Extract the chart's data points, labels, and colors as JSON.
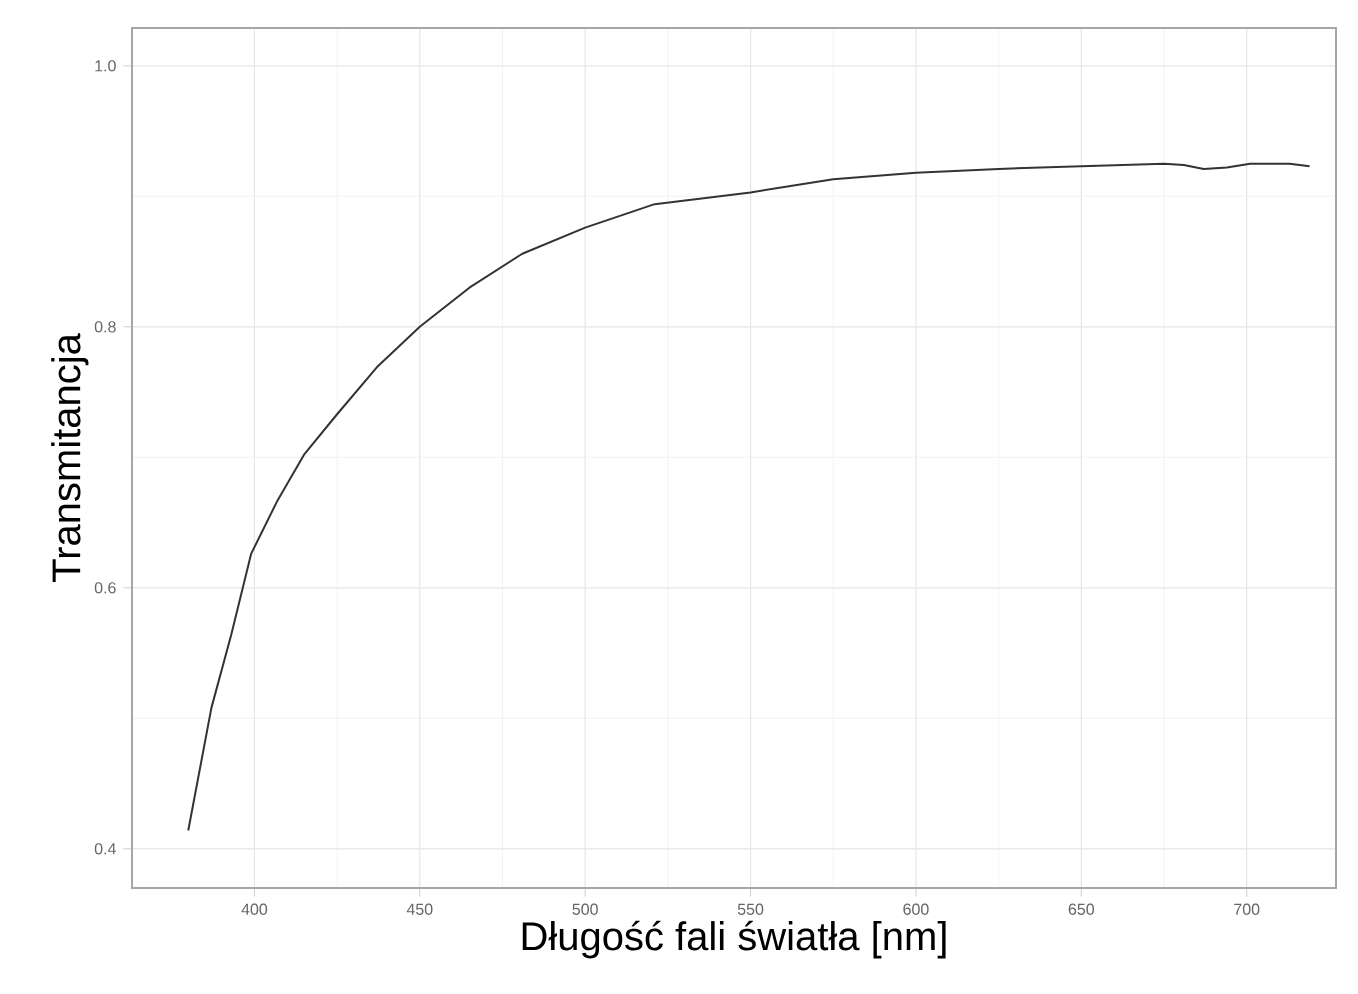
{
  "chart_data": {
    "type": "line",
    "xlabel": "Długość fali światła [nm]",
    "ylabel": "Transmitancja",
    "x": [
      380,
      387,
      393,
      399,
      407,
      415,
      425,
      437,
      450,
      465,
      481,
      500,
      521,
      550,
      575,
      600,
      625,
      650,
      675,
      681,
      687,
      694,
      701,
      713,
      719
    ],
    "series": [
      {
        "color": "#333333",
        "values": [
          0.414,
          0.508,
          0.564,
          0.626,
          0.667,
          0.702,
          0.733,
          0.769,
          0.8,
          0.83,
          0.856,
          0.876,
          0.894,
          0.903,
          0.913,
          0.918,
          0.921,
          0.923,
          0.925,
          0.924,
          0.921,
          0.922,
          0.925,
          0.925,
          0.923
        ]
      }
    ],
    "xlim": [
      363,
      727
    ],
    "ylim": [
      0.37,
      1.029
    ],
    "xticks": [
      400,
      450,
      500,
      550,
      600,
      650,
      700
    ],
    "yticks": [
      {
        "value": 0.4,
        "label": "0.4"
      },
      {
        "value": 0.6,
        "label": "0.6"
      },
      {
        "value": 0.8,
        "label": "0.8"
      },
      {
        "value": 1.0,
        "label": "1.0"
      }
    ],
    "grid": true,
    "line_style": "solid",
    "marker": "none"
  }
}
